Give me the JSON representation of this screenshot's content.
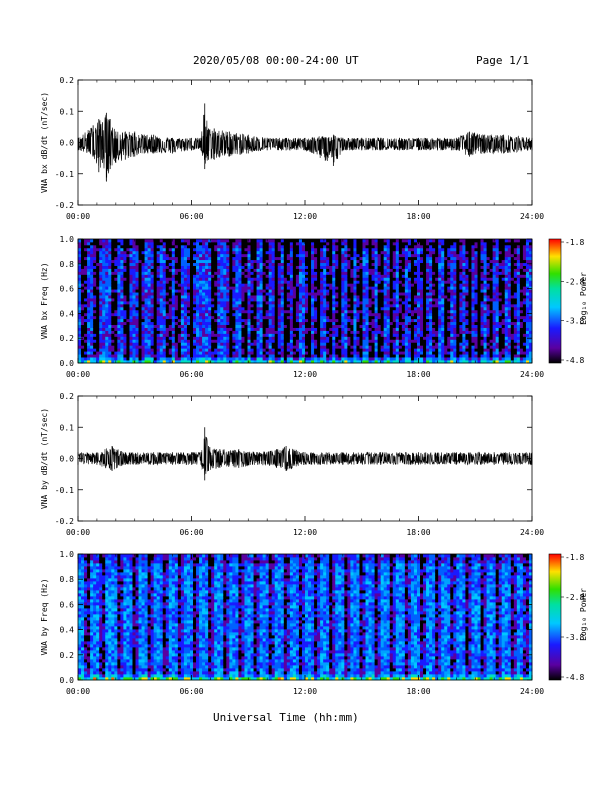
{
  "header": {
    "title": "2020/05/08  00:00-24:00 UT",
    "page": "Page 1/1"
  },
  "footer": {
    "xlabel": "Universal Time (hh:mm)"
  },
  "colors": {
    "trace": "#000000",
    "spectrogram_low": "#1a1aff",
    "spectrogram_mid": "#00c8ff",
    "spectrogram_high": "#ff0000"
  },
  "chart_data": [
    {
      "type": "line",
      "ylabel": "VNA bx dB/dt (nT/sec)",
      "xlim": [
        0,
        24
      ],
      "ylim": [
        -0.2,
        0.2
      ],
      "x_ticks": [
        "00:00",
        "06:00",
        "12:00",
        "18:00",
        "24:00"
      ],
      "y_ticks": [
        "0.2",
        "0.1",
        "0.0",
        "-0.1",
        "-0.2"
      ],
      "baseline": -0.005,
      "series": [
        {
          "x": [
            0,
            0.8,
            1.1,
            1.3,
            1.5,
            1.7,
            2.0,
            2.5,
            3.0,
            3.5,
            4.0,
            5.0,
            6.0,
            6.5,
            6.7,
            6.9,
            7.2,
            8.0,
            9.0,
            10.0,
            11.0,
            12.0,
            13.5,
            14.0,
            15.0,
            16.0,
            17.0,
            18.0,
            19.0,
            20.0,
            20.7,
            21.5,
            22.5,
            24.0
          ],
          "y": [
            0.02,
            0.06,
            0.08,
            0.07,
            0.1,
            0.08,
            0.04,
            0.04,
            0.04,
            0.03,
            0.03,
            0.02,
            0.02,
            0.02,
            0.13,
            0.05,
            0.05,
            0.04,
            0.03,
            0.02,
            0.02,
            0.02,
            0.03,
            0.02,
            0.02,
            0.02,
            0.02,
            0.02,
            0.02,
            0.02,
            0.04,
            0.03,
            0.03,
            0.02
          ],
          "y_min": [
            -0.02,
            -0.04,
            -0.09,
            -0.06,
            -0.12,
            -0.08,
            -0.06,
            -0.05,
            -0.04,
            -0.03,
            -0.03,
            -0.03,
            -0.02,
            -0.02,
            -0.08,
            -0.05,
            -0.05,
            -0.04,
            -0.03,
            -0.02,
            -0.02,
            -0.02,
            -0.07,
            -0.02,
            -0.02,
            -0.02,
            -0.02,
            -0.02,
            -0.02,
            -0.02,
            -0.04,
            -0.03,
            -0.03,
            -0.02
          ]
        }
      ]
    },
    {
      "type": "heatmap",
      "ylabel": "VNA bx Freq (Hz)",
      "xlim": [
        0,
        24
      ],
      "ylim": [
        0,
        1.0
      ],
      "x_ticks": [
        "00:00",
        "06:00",
        "12:00",
        "18:00",
        "24:00"
      ],
      "y_ticks": [
        "1.0",
        "0.8",
        "0.6",
        "0.4",
        "0.2",
        "0.0"
      ],
      "colorbar": {
        "label": "Log₁₀ Power",
        "ticks": [
          "-1.8",
          "-2.8",
          "-3.8",
          "-4.8"
        ],
        "range": [
          -4.8,
          -1.8
        ]
      },
      "level": -3.9,
      "dark_stripe_hours": [
        0.3,
        1.0,
        1.9,
        2.6,
        3.3,
        4.1,
        4.8,
        5.3,
        6.0,
        7.2,
        8.1,
        8.8,
        9.3,
        9.9,
        10.5,
        11.0,
        11.5,
        12.2,
        12.7,
        13.3,
        13.8,
        14.4,
        14.9,
        15.5,
        16.0,
        16.6,
        17.1,
        17.7,
        18.3,
        18.9,
        19.5,
        20.1,
        20.7,
        21.2,
        21.8,
        22.4,
        23.0,
        23.5
      ],
      "low_freq_enhancement_hz": 0.05
    },
    {
      "type": "line",
      "ylabel": "VNA by dB/dt (nT/sec)",
      "xlim": [
        0,
        24
      ],
      "ylim": [
        -0.2,
        0.2
      ],
      "x_ticks": [
        "00:00",
        "06:00",
        "12:00",
        "18:00",
        "24:00"
      ],
      "y_ticks": [
        "0.2",
        "0.1",
        "0.0",
        "-0.1",
        "-0.2"
      ],
      "baseline": 0.0,
      "series": [
        {
          "x": [
            0,
            1.0,
            1.8,
            2.5,
            4.0,
            5.0,
            6.0,
            6.5,
            6.7,
            6.9,
            7.5,
            8.5,
            9.5,
            10.5,
            11.0,
            12.0,
            14.0,
            16.0,
            18.0,
            20.0,
            22.0,
            24.0
          ],
          "y": [
            0.02,
            0.02,
            0.04,
            0.02,
            0.02,
            0.02,
            0.02,
            0.02,
            0.1,
            0.04,
            0.03,
            0.03,
            0.02,
            0.03,
            0.04,
            0.02,
            0.02,
            0.02,
            0.02,
            0.02,
            0.02,
            0.02
          ],
          "y_min": [
            -0.02,
            -0.02,
            -0.04,
            -0.02,
            -0.02,
            -0.02,
            -0.02,
            -0.02,
            -0.07,
            -0.04,
            -0.03,
            -0.03,
            -0.02,
            -0.03,
            -0.04,
            -0.02,
            -0.02,
            -0.02,
            -0.02,
            -0.02,
            -0.02,
            -0.02
          ]
        }
      ]
    },
    {
      "type": "heatmap",
      "ylabel": "VNA by Freq (Hz)",
      "xlim": [
        0,
        24
      ],
      "ylim": [
        0,
        1.0
      ],
      "x_ticks": [
        "00:00",
        "06:00",
        "12:00",
        "18:00",
        "24:00"
      ],
      "y_ticks": [
        "1.0",
        "0.8",
        "0.6",
        "0.4",
        "0.2",
        "0.0"
      ],
      "colorbar": {
        "label": "Log₁₀ Power",
        "ticks": [
          "-1.8",
          "-2.8",
          "-3.8",
          "-4.8"
        ],
        "range": [
          -4.8,
          -1.8
        ]
      },
      "level": -3.6,
      "dark_stripe_hours": [
        0.5,
        1.3,
        2.2,
        3.0,
        3.8,
        4.6,
        5.4,
        6.2,
        7.0,
        7.8,
        8.6,
        9.4,
        10.2,
        11.0,
        11.8,
        12.6,
        13.4,
        14.2,
        15.0,
        15.8,
        16.6,
        17.4,
        18.2,
        19.0,
        19.8,
        20.6,
        21.4,
        22.2,
        23.0,
        23.7
      ],
      "low_freq_enhancement_hz": 0.04
    }
  ]
}
